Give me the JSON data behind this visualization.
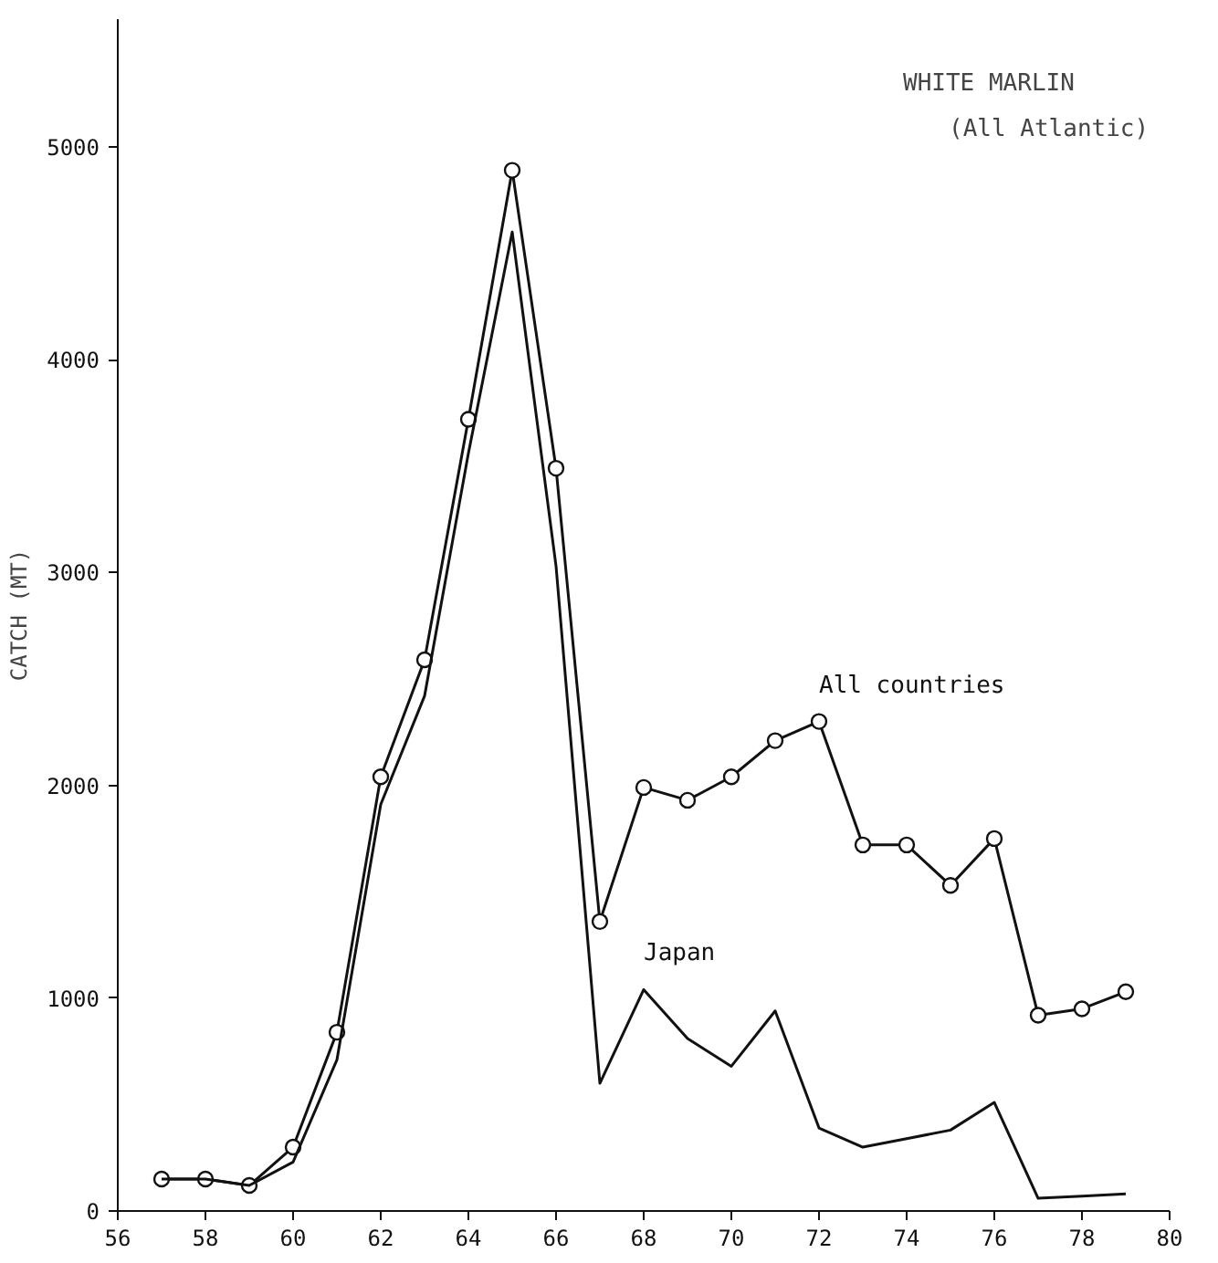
{
  "chart_data": {
    "type": "line",
    "title": "WHITE MARLIN",
    "subtitle": "(All Atlantic)",
    "ylabel": "CATCH (MT)",
    "x": [
      57,
      58,
      59,
      60,
      61,
      62,
      63,
      64,
      65,
      66,
      67,
      68,
      69,
      70,
      71,
      72,
      73,
      74,
      75,
      76,
      77,
      78,
      79
    ],
    "series": [
      {
        "name": "All countries",
        "color": "#111111",
        "marker": "circle",
        "values": [
          150,
          150,
          120,
          300,
          840,
          2040,
          2590,
          3720,
          4890,
          3490,
          1360,
          1990,
          1930,
          2040,
          2210,
          2300,
          1720,
          1720,
          1530,
          1750,
          920,
          950,
          1030
        ]
      },
      {
        "name": "Japan",
        "color": "#111111",
        "marker": "none",
        "values": [
          150,
          150,
          120,
          230,
          710,
          1910,
          2420,
          3560,
          4600,
          3030,
          600,
          1040,
          810,
          680,
          940,
          390,
          300,
          340,
          380,
          510,
          60,
          70,
          80
        ]
      }
    ],
    "xlim": [
      56,
      80
    ],
    "xticks": [
      56,
      58,
      60,
      62,
      64,
      66,
      68,
      70,
      72,
      74,
      76,
      78,
      80
    ],
    "ylim": [
      0,
      5600
    ],
    "yticks": [
      0,
      1000,
      2000,
      3000,
      4000,
      5000
    ],
    "grid": false
  }
}
